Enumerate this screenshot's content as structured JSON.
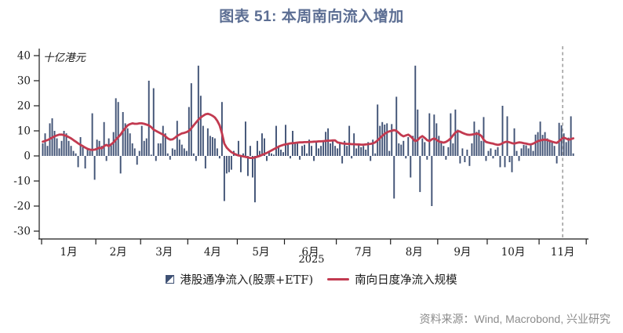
{
  "title": "图表 51: 本周南向流入增加",
  "source": "资料来源：Wind, Macrobond,  兴业研究",
  "legend": {
    "bar_label": "港股通净流入(股票+ETF)",
    "line_label": "南向日度净流入规模"
  },
  "chart_data": {
    "type": "bar",
    "subtype": "daily bars with moving-average line overlay",
    "title": "图表 51: 本周南向流入增加",
    "unit_label": "十亿港元",
    "year_label": "2025",
    "xlabel": "",
    "ylabel": "十亿港元",
    "ylim": [
      -30,
      40
    ],
    "yticks": [
      40,
      30,
      20,
      10,
      0,
      -10,
      -20,
      -30
    ],
    "grid": false,
    "legend_position": "bottom-center",
    "dashed_line_global_day": 221,
    "colors": {
      "bar": "#3f5174",
      "line": "#c23a50",
      "dashed": "#9b9b9b",
      "axis": "#1b1b1b",
      "title": "#5c6e93",
      "source_text": "#8b8b8b"
    },
    "series": [
      {
        "name": "港股通净流入(股票+ETF)",
        "type": "bar"
      },
      {
        "name": "南向日度净流入规模",
        "type": "line"
      }
    ],
    "months": [
      {
        "label": "1月",
        "bars": [
          5,
          9,
          4,
          13,
          15,
          10,
          7,
          3,
          6,
          10,
          9,
          6,
          4,
          2,
          1,
          -4.5,
          7.5,
          3.5,
          -5,
          2.5,
          2,
          17,
          -9.5
        ],
        "line": [
          5.7,
          6.0,
          6.3,
          6.8,
          7.3,
          7.8,
          8.2,
          8.5,
          8.5,
          8.3,
          8.0,
          7.5,
          7.0,
          6.3,
          5.7,
          5.0,
          4.4,
          3.9,
          3.3,
          2.8,
          2.5,
          2.4,
          2.5
        ]
      },
      {
        "label": "2月",
        "bars": [
          6.5,
          6,
          4,
          13.5,
          -2,
          7,
          5,
          9.5,
          23,
          21.5,
          -7,
          17.5,
          13,
          11,
          9,
          5,
          3,
          -3.5,
          2
        ],
        "line": [
          2.8,
          3.3,
          3.0,
          3.9,
          4.4,
          3.9,
          4.6,
          5.4,
          6.5,
          7.5,
          8.5,
          10.0,
          11.1,
          12.2,
          12.7,
          13.0,
          12.8,
          12.8,
          13.0
        ]
      },
      {
        "label": "3月",
        "bars": [
          12,
          6,
          7,
          30,
          0.5,
          27,
          -2,
          5,
          5,
          12,
          9,
          1,
          -1.5,
          3,
          2.5,
          14,
          6.5,
          4.5,
          3,
          2
        ],
        "line": [
          13.0,
          12.8,
          12.5,
          12.2,
          11.5,
          10.5,
          10.0,
          9.5,
          9.0,
          8.5,
          7.8,
          7.0,
          6.5,
          6.6,
          7.2,
          8.0,
          8.5,
          9.0,
          9.2,
          9.5
        ]
      },
      {
        "label": "4月",
        "bars": [
          19.5,
          29,
          1,
          -2,
          36,
          24,
          12,
          -5,
          11,
          8,
          7.5,
          7,
          3,
          -1,
          21.5,
          -18,
          -7,
          -6.5,
          -5.5,
          2,
          1
        ],
        "line": [
          10.0,
          11.0,
          12.2,
          13.3,
          14.4,
          15.3,
          16.0,
          16.6,
          16.8,
          16.5,
          16.0,
          15.3,
          14.0,
          12.2,
          9.0,
          4.9,
          3.3,
          2.3,
          1.5,
          1.0,
          0.5
        ]
      },
      {
        "label": "5月",
        "bars": [
          6,
          -6.5,
          1,
          13.7,
          -8,
          4,
          -8.6,
          -18.5,
          6,
          2,
          9,
          7,
          -2,
          2,
          1,
          0.5,
          12,
          3.5,
          2.5,
          1.5
        ],
        "line": [
          0.2,
          0.0,
          -0.2,
          -0.4,
          -0.6,
          -0.8,
          -0.8,
          -0.6,
          -0.3,
          0.0,
          0.4,
          0.8,
          1.2,
          1.7,
          2.2,
          2.7,
          3.2,
          3.7,
          4.1,
          4.4
        ]
      },
      {
        "label": "6月",
        "bars": [
          12.4,
          5,
          -1,
          10,
          5.5,
          5,
          -1.5,
          4,
          4.5,
          1,
          6.5,
          4,
          -2,
          5.5,
          3,
          4,
          6,
          9.6,
          11,
          5,
          6.5,
          4
        ],
        "line": [
          4.6,
          4.8,
          5.0,
          5.1,
          5.2,
          5.3,
          5.4,
          5.4,
          5.5,
          5.5,
          5.6,
          5.6,
          5.7,
          5.7,
          5.8,
          5.8,
          5.9,
          6.0,
          6.1,
          6.1,
          6.2,
          6.2
        ]
      },
      {
        "label": "7月",
        "bars": [
          3,
          5,
          -3,
          6,
          4,
          12,
          -1,
          9,
          3,
          5,
          3.5,
          4,
          2.5,
          5.5,
          -2,
          6.5,
          1,
          20.5,
          12,
          13.5,
          12.5,
          13,
          2
        ],
        "line": [
          5.4,
          5.2,
          5.0,
          4.9,
          4.8,
          4.8,
          4.7,
          4.7,
          4.6,
          4.6,
          4.5,
          4.5,
          4.6,
          4.7,
          4.8,
          5.0,
          5.4,
          6.2,
          7.1,
          8.0,
          8.8,
          9.4,
          9.8
        ]
      },
      {
        "label": "8月",
        "bars": [
          12.7,
          -17,
          23.6,
          5,
          4.5,
          6,
          -1,
          7.5,
          -8.6,
          8,
          36,
          18.5,
          -14.4,
          7,
          5.5,
          -1.5,
          17,
          -20,
          16.5,
          13
        ],
        "line": [
          10.0,
          10.3,
          10.0,
          9.2,
          8.3,
          7.8,
          8.2,
          8.5,
          7.8,
          6.8,
          5.9,
          6.3,
          7.3,
          7.9,
          7.2,
          6.3,
          5.9,
          6.6,
          7.0,
          6.4
        ]
      },
      {
        "label": "9月",
        "bars": [
          8,
          6,
          4,
          -1.5,
          3.5,
          17,
          5,
          18.5,
          10.5,
          -3,
          3,
          -2.5,
          2.5,
          -4,
          5,
          13.7,
          9.6,
          10.4,
          6,
          15.5,
          -2
        ],
        "line": [
          5.8,
          5.5,
          5.3,
          5.6,
          6.2,
          7.0,
          8.2,
          9.3,
          9.9,
          9.7,
          9.2,
          8.8,
          8.5,
          8.4,
          8.5,
          8.7,
          8.9,
          8.7,
          8.0,
          6.5,
          5.6
        ]
      },
      {
        "label": "10月",
        "bars": [
          2,
          3,
          -1,
          2.5,
          3.5,
          -4.5,
          20,
          -4.5,
          15.8,
          -2.5,
          -6.5,
          11,
          2,
          -2,
          3,
          4.4,
          4.2,
          3,
          4.5,
          2,
          8.5,
          9.5
        ],
        "line": [
          5.3,
          5.1,
          4.9,
          4.6,
          4.4,
          4.6,
          5.1,
          5.5,
          5.7,
          5.4,
          5.1,
          4.9,
          5.2,
          5.4,
          5.3,
          5.1,
          4.9,
          4.7,
          4.6,
          4.9,
          5.4,
          5.9
        ]
      },
      {
        "label": "11月",
        "days": 20,
        "bars": [
          13.7,
          8.4,
          9.5,
          7,
          6,
          5.5,
          4,
          -3,
          13.2,
          12.2,
          9,
          5.5,
          7.3,
          15.8,
          1
        ],
        "line": [
          6.2,
          6.4,
          6.5,
          6.3,
          6.0,
          5.7,
          5.4,
          5.2,
          5.9,
          6.7,
          7.3,
          6.9,
          6.5,
          6.7,
          7.0
        ]
      }
    ]
  }
}
